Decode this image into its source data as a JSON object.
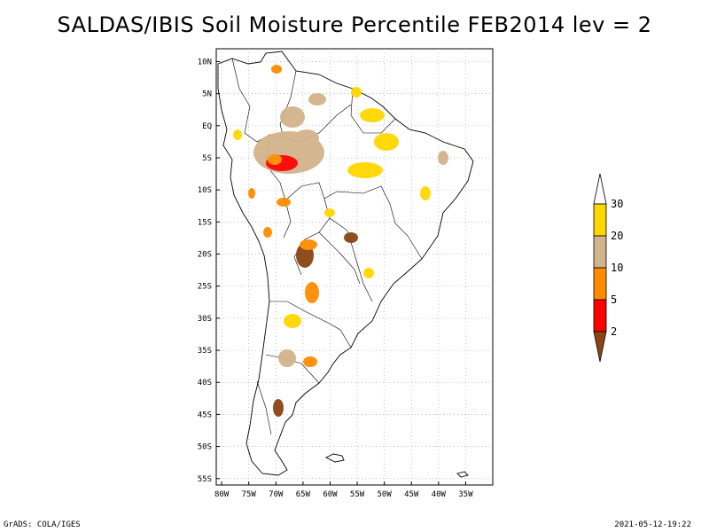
{
  "title": "SALDAS/IBIS Soil Moisture Percentile FEB2014 lev = 2",
  "footer": {
    "left": "GrADS: COLA/IGES",
    "right": "2021-05-12-19:22"
  },
  "chart_data": {
    "type": "heatmap",
    "title": "SALDAS/IBIS Soil Moisture Percentile FEB2014 lev = 2",
    "variable": "Soil Moisture Percentile",
    "period": "FEB2014",
    "level": 2,
    "region": "South America",
    "lon_range": [
      -81,
      -30
    ],
    "lat_range": [
      -56,
      12
    ],
    "lat_ticks": [
      "10N",
      "5N",
      "EQ",
      "5S",
      "10S",
      "15S",
      "20S",
      "25S",
      "30S",
      "35S",
      "40S",
      "45S",
      "50S",
      "55S"
    ],
    "lon_ticks": [
      "80W",
      "75W",
      "70W",
      "65W",
      "60W",
      "55W",
      "50W",
      "45W",
      "40W",
      "35W"
    ],
    "grid": true,
    "legend_position": "right",
    "colorbar": {
      "levels": [
        "2",
        "5",
        "10",
        "20",
        "30"
      ],
      "colors": [
        "#8b4513",
        "#ff0000",
        "#ff8c00",
        "#d2b48c",
        "#ffd700",
        "#ffffff"
      ]
    }
  }
}
